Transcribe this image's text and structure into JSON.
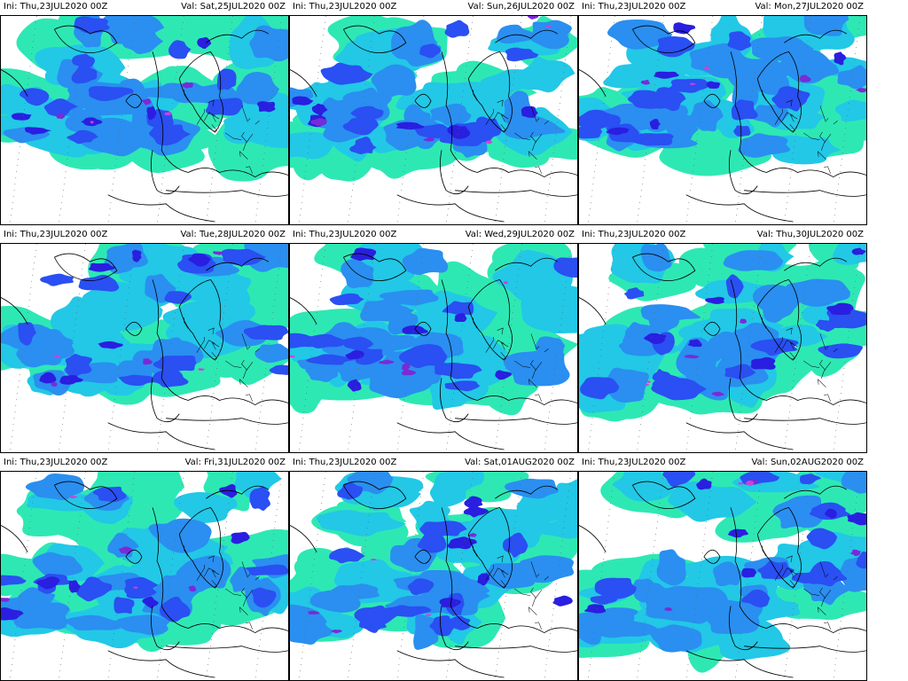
{
  "panels": [
    {
      "ini": "Ini: Thu,23JUL2020 00Z",
      "valid": "Val: Sat,25JUL2020 00Z"
    },
    {
      "ini": "Ini: Thu,23JUL2020 00Z",
      "valid": "Val: Sun,26JUL2020 00Z"
    },
    {
      "ini": "Ini: Thu,23JUL2020 00Z",
      "valid": "Val: Mon,27JUL2020 00Z"
    },
    {
      "ini": "Ini: Thu,23JUL2020 00Z",
      "valid": "Val: Tue,28JUL2020 00Z"
    },
    {
      "ini": "Ini: Thu,23JUL2020 00Z",
      "valid": "Val: Wed,29JUL2020 00Z"
    },
    {
      "ini": "Ini: Thu,23JUL2020 00Z",
      "valid": "Val: Thu,30JUL2020 00Z"
    },
    {
      "ini": "Ini: Thu,23JUL2020 00Z",
      "valid": "Val: Fri,31JUL2020 00Z"
    },
    {
      "ini": "Ini: Thu,23JUL2020 00Z",
      "valid": "Val: Sat,01AUG2020 00Z"
    },
    {
      "ini": "Ini: Thu,23JUL2020 00Z",
      "valid": "Val: Sun,02AUG2020 00Z"
    }
  ],
  "colors": {
    "light": "#2ee8b4",
    "cyan": "#22c8e6",
    "mid": "#2a8ff0",
    "blue": "#2a4ff2",
    "deep": "#2a1ee0",
    "purple": "#7a2ad8",
    "magenta": "#d040d8",
    "coast": "#000000"
  }
}
